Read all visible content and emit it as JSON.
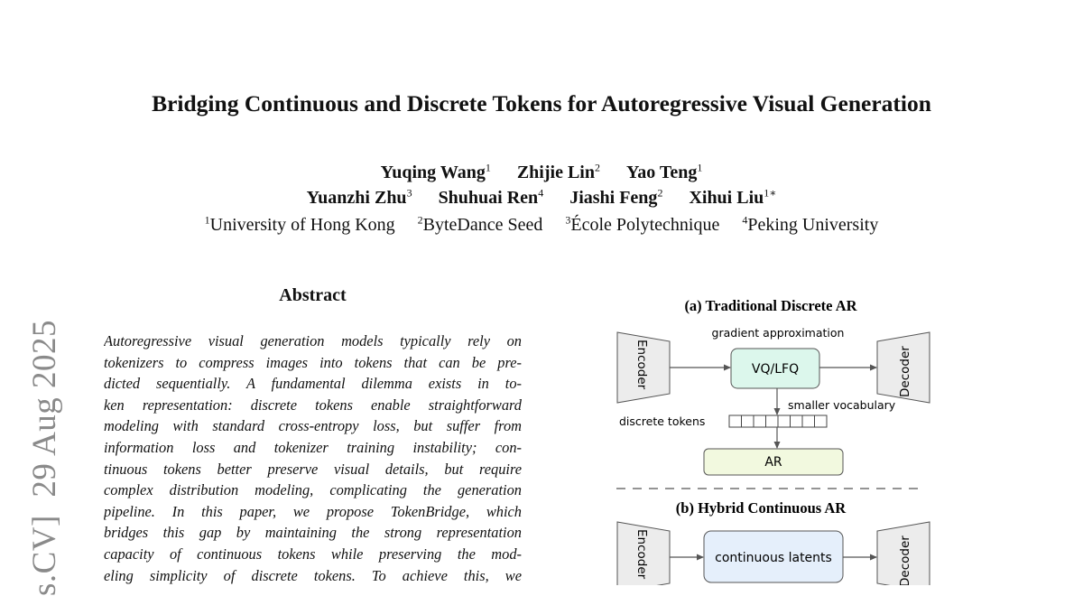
{
  "paper": {
    "title": "Bridging Continuous and Discrete Tokens for Autoregressive Visual Generation",
    "authors_line1": [
      {
        "name": "Yuqing Wang",
        "sup": "1"
      },
      {
        "name": "Zhijie Lin",
        "sup": "2"
      },
      {
        "name": "Yao Teng",
        "sup": "1"
      }
    ],
    "authors_line2": [
      {
        "name": "Yuanzhi Zhu",
        "sup": "3"
      },
      {
        "name": "Shuhuai Ren",
        "sup": "4"
      },
      {
        "name": "Jiashi Feng",
        "sup": "2"
      },
      {
        "name": "Xihui Liu",
        "sup": "1∗"
      }
    ],
    "affiliations": [
      {
        "sup": "1",
        "name": "University of Hong Kong"
      },
      {
        "sup": "2",
        "name": "ByteDance Seed"
      },
      {
        "sup": "3",
        "name": "École Polytechnique"
      },
      {
        "sup": "4",
        "name": "Peking University"
      }
    ],
    "arxiv_stamp": "s.CV]  29 Aug 2025",
    "abstract": {
      "heading": "Abstract",
      "lines": [
        "Autoregressive visual generation models typically rely on",
        "tokenizers to compress images into tokens that can be pre-",
        "dicted sequentially.  A fundamental dilemma exists in to-",
        "ken representation: discrete tokens enable straightforward",
        "modeling with standard cross-entropy loss, but suffer from",
        "information loss and tokenizer training instability; con-",
        "tinuous tokens better preserve visual details, but require",
        "complex distribution modeling, complicating the generation",
        "pipeline.  In this paper, we propose TokenBridge, which",
        "bridges this gap by maintaining the strong representation",
        "capacity of continuous tokens while preserving the mod-",
        "eling simplicity of discrete tokens.  To achieve this, we"
      ]
    }
  },
  "figure": {
    "panel_a": {
      "caption": "(a) Traditional Discrete AR",
      "encoder": "Encoder",
      "decoder": "Decoder",
      "quantizer": "VQ/LFQ",
      "gradient_note": "gradient approximation",
      "vocab_note": "smaller vocabulary",
      "tokens_label": "discrete tokens",
      "ar": "AR",
      "quantizer_color": "#dcf7ec",
      "ar_color": "#f2f9df"
    },
    "panel_b": {
      "caption": "(b) Hybrid Continuous AR",
      "encoder": "Encoder",
      "decoder": "Decoder",
      "latents": "continuous latents",
      "latents_color": "#e5effb"
    }
  }
}
